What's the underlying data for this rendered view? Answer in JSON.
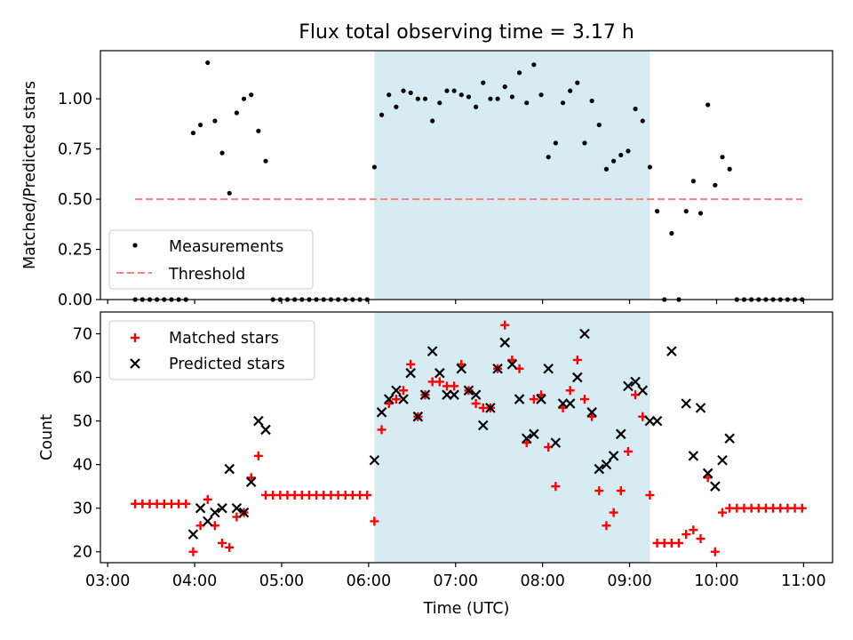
{
  "chart_data": [
    {
      "type": "scatter",
      "title": "Flux total observing time = 3.17 h",
      "xlabel": "",
      "ylabel": "Matched/Predicted stars",
      "ylim": [
        0,
        1.24
      ],
      "yticks": [
        0.0,
        0.25,
        0.5,
        0.75,
        1.0
      ],
      "ytick_labels": [
        "0.00",
        "0.25",
        "0.50",
        "0.75",
        "1.00"
      ],
      "xlim": [
        "03:00",
        "11:00"
      ],
      "shaded_interval": [
        "06:04",
        "09:14"
      ],
      "legend_position": "lower-left",
      "series": [
        {
          "name": "Measurements",
          "marker": "dot",
          "color": "#000000",
          "points": [
            [
              "03:19",
              0
            ],
            [
              "03:24",
              0
            ],
            [
              "03:29",
              0
            ],
            [
              "03:34",
              0
            ],
            [
              "03:39",
              0
            ],
            [
              "03:44",
              0
            ],
            [
              "03:49",
              0
            ],
            [
              "03:54",
              0
            ],
            [
              "03:59",
              0.83
            ],
            [
              "04:04",
              0.87
            ],
            [
              "04:09",
              1.18
            ],
            [
              "04:14",
              0.89
            ],
            [
              "04:19",
              0.73
            ],
            [
              "04:24",
              0.53
            ],
            [
              "04:29",
              0.93
            ],
            [
              "04:34",
              1.0
            ],
            [
              "04:39",
              1.02
            ],
            [
              "04:44",
              0.84
            ],
            [
              "04:49",
              0.69
            ],
            [
              "04:54",
              0
            ],
            [
              "04:59",
              0
            ],
            [
              "05:04",
              0
            ],
            [
              "05:09",
              0
            ],
            [
              "05:14",
              0
            ],
            [
              "05:19",
              0
            ],
            [
              "05:24",
              0
            ],
            [
              "05:29",
              0
            ],
            [
              "05:34",
              0
            ],
            [
              "05:39",
              0
            ],
            [
              "05:44",
              0
            ],
            [
              "05:49",
              0
            ],
            [
              "05:54",
              0
            ],
            [
              "05:59",
              0
            ],
            [
              "06:04",
              0.66
            ],
            [
              "06:09",
              0.92
            ],
            [
              "06:14",
              1.02
            ],
            [
              "06:19",
              0.96
            ],
            [
              "06:24",
              1.04
            ],
            [
              "06:29",
              1.03
            ],
            [
              "06:34",
              1.0
            ],
            [
              "06:39",
              1.0
            ],
            [
              "06:44",
              0.89
            ],
            [
              "06:49",
              0.98
            ],
            [
              "06:54",
              1.04
            ],
            [
              "06:59",
              1.04
            ],
            [
              "07:04",
              1.02
            ],
            [
              "07:09",
              1.01
            ],
            [
              "07:14",
              0.96
            ],
            [
              "07:19",
              1.08
            ],
            [
              "07:24",
              1.0
            ],
            [
              "07:29",
              1.0
            ],
            [
              "07:34",
              1.06
            ],
            [
              "07:39",
              1.01
            ],
            [
              "07:44",
              1.13
            ],
            [
              "07:49",
              0.98
            ],
            [
              "07:54",
              1.17
            ],
            [
              "07:59",
              1.02
            ],
            [
              "08:04",
              0.71
            ],
            [
              "08:09",
              0.78
            ],
            [
              "08:14",
              0.98
            ],
            [
              "08:19",
              1.04
            ],
            [
              "08:24",
              1.08
            ],
            [
              "08:29",
              0.78
            ],
            [
              "08:34",
              0.99
            ],
            [
              "08:39",
              0.87
            ],
            [
              "08:44",
              0.65
            ],
            [
              "08:49",
              0.69
            ],
            [
              "08:54",
              0.72
            ],
            [
              "08:59",
              0.74
            ],
            [
              "09:04",
              0.95
            ],
            [
              "09:09",
              0.89
            ],
            [
              "09:14",
              0.66
            ],
            [
              "09:19",
              0.44
            ],
            [
              "09:24",
              0
            ],
            [
              "09:29",
              0.33
            ],
            [
              "09:34",
              0
            ],
            [
              "09:39",
              0.44
            ],
            [
              "09:44",
              0.59
            ],
            [
              "09:49",
              0.43
            ],
            [
              "09:54",
              0.97
            ],
            [
              "09:59",
              0.57
            ],
            [
              "10:04",
              0.71
            ],
            [
              "10:09",
              0.65
            ],
            [
              "10:14",
              0
            ],
            [
              "10:19",
              0
            ],
            [
              "10:24",
              0
            ],
            [
              "10:29",
              0
            ],
            [
              "10:34",
              0
            ],
            [
              "10:39",
              0
            ],
            [
              "10:44",
              0
            ],
            [
              "10:49",
              0
            ],
            [
              "10:54",
              0
            ],
            [
              "10:59",
              0
            ]
          ]
        },
        {
          "name": "Threshold",
          "marker": "dashed-line",
          "color": "#ff7f7f",
          "points": [
            [
              "03:19",
              0.5
            ],
            [
              "10:59",
              0.5
            ]
          ]
        }
      ]
    },
    {
      "type": "scatter",
      "title": "",
      "xlabel": "Time (UTC)",
      "ylabel": "Count",
      "ylim": [
        17.5,
        75
      ],
      "yticks": [
        20,
        30,
        40,
        50,
        60,
        70
      ],
      "xlim": [
        "03:00",
        "11:00"
      ],
      "xticks": [
        "03:00",
        "04:00",
        "05:00",
        "06:00",
        "07:00",
        "08:00",
        "09:00",
        "10:00",
        "11:00"
      ],
      "shaded_interval": [
        "06:04",
        "09:14"
      ],
      "legend_position": "upper-left",
      "series": [
        {
          "name": "Matched stars",
          "marker": "plus",
          "color": "#ff0000",
          "points": [
            [
              "03:19",
              31
            ],
            [
              "03:24",
              31
            ],
            [
              "03:29",
              31
            ],
            [
              "03:34",
              31
            ],
            [
              "03:39",
              31
            ],
            [
              "03:44",
              31
            ],
            [
              "03:49",
              31
            ],
            [
              "03:54",
              31
            ],
            [
              "03:59",
              20
            ],
            [
              "04:04",
              26
            ],
            [
              "04:09",
              32
            ],
            [
              "04:14",
              26
            ],
            [
              "04:19",
              22
            ],
            [
              "04:24",
              21
            ],
            [
              "04:29",
              28
            ],
            [
              "04:34",
              29
            ],
            [
              "04:39",
              37
            ],
            [
              "04:44",
              42
            ],
            [
              "04:49",
              33
            ],
            [
              "04:54",
              33
            ],
            [
              "04:59",
              33
            ],
            [
              "05:04",
              33
            ],
            [
              "05:09",
              33
            ],
            [
              "05:14",
              33
            ],
            [
              "05:19",
              33
            ],
            [
              "05:24",
              33
            ],
            [
              "05:29",
              33
            ],
            [
              "05:34",
              33
            ],
            [
              "05:39",
              33
            ],
            [
              "05:44",
              33
            ],
            [
              "05:49",
              33
            ],
            [
              "05:54",
              33
            ],
            [
              "05:59",
              33
            ],
            [
              "06:04",
              27
            ],
            [
              "06:09",
              48
            ],
            [
              "06:14",
              54
            ],
            [
              "06:19",
              55
            ],
            [
              "06:24",
              57
            ],
            [
              "06:29",
              63
            ],
            [
              "06:34",
              51
            ],
            [
              "06:39",
              56
            ],
            [
              "06:44",
              59
            ],
            [
              "06:49",
              59
            ],
            [
              "06:54",
              58
            ],
            [
              "06:59",
              58
            ],
            [
              "07:04",
              63
            ],
            [
              "07:09",
              57
            ],
            [
              "07:14",
              54
            ],
            [
              "07:19",
              53
            ],
            [
              "07:24",
              53
            ],
            [
              "07:29",
              62
            ],
            [
              "07:34",
              72
            ],
            [
              "07:39",
              64
            ],
            [
              "07:44",
              62
            ],
            [
              "07:49",
              45
            ],
            [
              "07:54",
              55
            ],
            [
              "07:59",
              56
            ],
            [
              "08:04",
              44
            ],
            [
              "08:09",
              35
            ],
            [
              "08:14",
              53
            ],
            [
              "08:19",
              57
            ],
            [
              "08:24",
              64
            ],
            [
              "08:29",
              55
            ],
            [
              "08:34",
              51
            ],
            [
              "08:39",
              34
            ],
            [
              "08:44",
              26
            ],
            [
              "08:49",
              29
            ],
            [
              "08:54",
              34
            ],
            [
              "08:59",
              43
            ],
            [
              "09:04",
              56
            ],
            [
              "09:09",
              51
            ],
            [
              "09:14",
              33
            ],
            [
              "09:19",
              22
            ],
            [
              "09:24",
              22
            ],
            [
              "09:29",
              22
            ],
            [
              "09:34",
              22
            ],
            [
              "09:39",
              24
            ],
            [
              "09:44",
              25
            ],
            [
              "09:49",
              23
            ],
            [
              "09:54",
              37
            ],
            [
              "09:59",
              20
            ],
            [
              "10:04",
              29
            ],
            [
              "10:09",
              30
            ],
            [
              "10:14",
              30
            ],
            [
              "10:19",
              30
            ],
            [
              "10:24",
              30
            ],
            [
              "10:29",
              30
            ],
            [
              "10:34",
              30
            ],
            [
              "10:39",
              30
            ],
            [
              "10:44",
              30
            ],
            [
              "10:49",
              30
            ],
            [
              "10:54",
              30
            ],
            [
              "10:59",
              30
            ]
          ]
        },
        {
          "name": "Predicted stars",
          "marker": "x",
          "color": "#000000",
          "points": [
            [
              "03:59",
              24
            ],
            [
              "04:04",
              30
            ],
            [
              "04:09",
              27
            ],
            [
              "04:14",
              29
            ],
            [
              "04:19",
              30
            ],
            [
              "04:24",
              39
            ],
            [
              "04:29",
              30
            ],
            [
              "04:34",
              29
            ],
            [
              "04:39",
              36
            ],
            [
              "04:44",
              50
            ],
            [
              "04:49",
              48
            ],
            [
              "06:04",
              41
            ],
            [
              "06:09",
              52
            ],
            [
              "06:14",
              55
            ],
            [
              "06:19",
              57
            ],
            [
              "06:24",
              55
            ],
            [
              "06:29",
              61
            ],
            [
              "06:34",
              51
            ],
            [
              "06:39",
              56
            ],
            [
              "06:44",
              66
            ],
            [
              "06:49",
              61
            ],
            [
              "06:54",
              56
            ],
            [
              "06:59",
              56
            ],
            [
              "07:04",
              62
            ],
            [
              "07:09",
              57
            ],
            [
              "07:14",
              56
            ],
            [
              "07:19",
              49
            ],
            [
              "07:24",
              53
            ],
            [
              "07:29",
              62
            ],
            [
              "07:34",
              68
            ],
            [
              "07:39",
              63
            ],
            [
              "07:44",
              55
            ],
            [
              "07:49",
              46
            ],
            [
              "07:54",
              47
            ],
            [
              "07:59",
              55
            ],
            [
              "08:04",
              62
            ],
            [
              "08:09",
              45
            ],
            [
              "08:14",
              54
            ],
            [
              "08:19",
              54
            ],
            [
              "08:24",
              60
            ],
            [
              "08:29",
              70
            ],
            [
              "08:34",
              52
            ],
            [
              "08:39",
              39
            ],
            [
              "08:44",
              40
            ],
            [
              "08:49",
              42
            ],
            [
              "08:54",
              47
            ],
            [
              "08:59",
              58
            ],
            [
              "09:04",
              59
            ],
            [
              "09:09",
              57
            ],
            [
              "09:14",
              50
            ],
            [
              "09:19",
              50
            ],
            [
              "09:29",
              66
            ],
            [
              "09:39",
              54
            ],
            [
              "09:44",
              42
            ],
            [
              "09:49",
              53
            ],
            [
              "09:54",
              38
            ],
            [
              "09:59",
              35
            ],
            [
              "10:04",
              41
            ],
            [
              "10:09",
              46
            ]
          ]
        }
      ]
    }
  ]
}
